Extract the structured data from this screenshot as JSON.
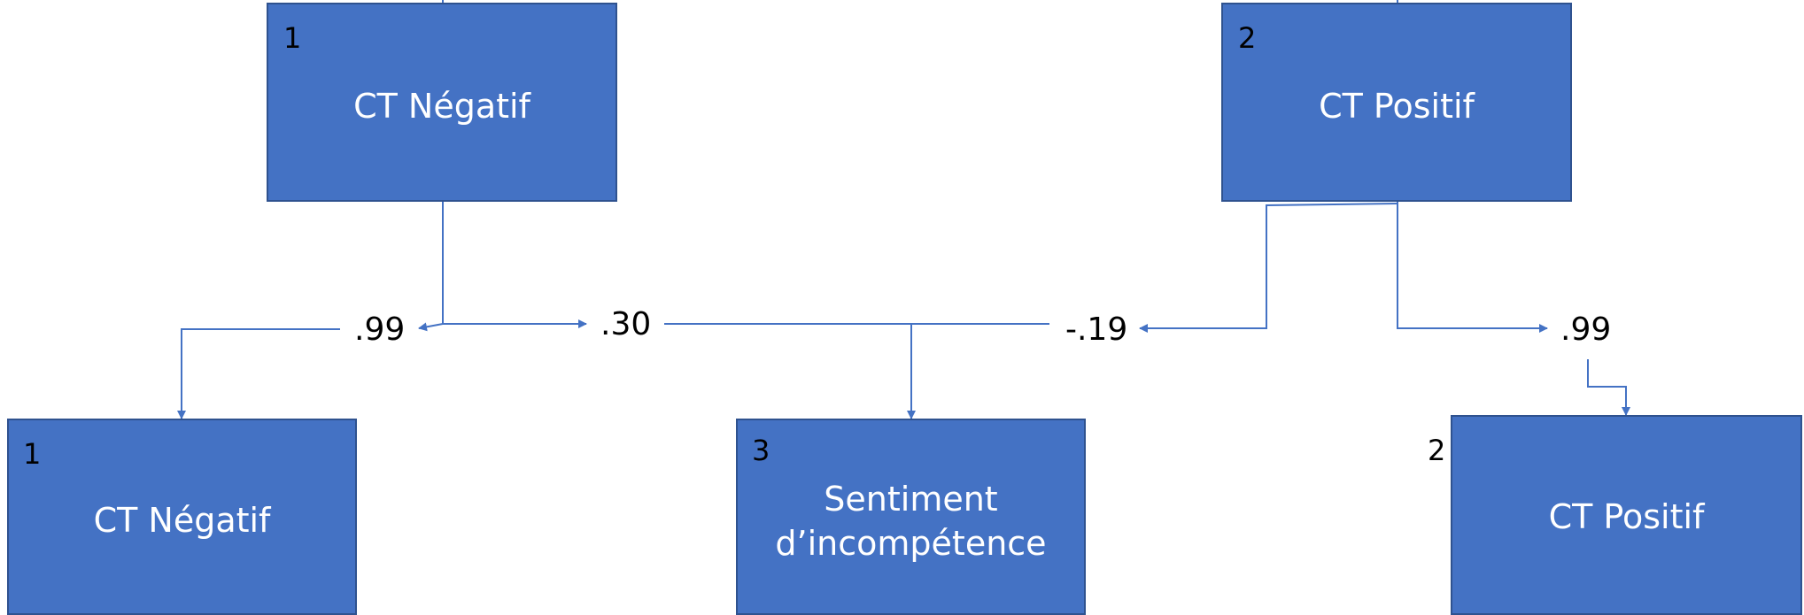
{
  "colors": {
    "box_fill": "#4472c4",
    "box_border": "#2f528f",
    "connector": "#4472c4",
    "box_text": "#ffffff",
    "label_text": "#000000"
  },
  "top_boxes": {
    "negatif": {
      "num": "1",
      "label": "CT Négatif"
    },
    "positif": {
      "num": "2",
      "label": "CT Positif"
    }
  },
  "bottom_boxes": {
    "negatif": {
      "num": "1",
      "label": "CT Négatif"
    },
    "sentiment": {
      "num": "3",
      "label_line1": "Sentiment",
      "label_line2": "d’incompétence"
    },
    "positif": {
      "num": "2",
      "label": "CT Positif"
    }
  },
  "coefficients": {
    "neg_stability": ".99",
    "neg_to_sentiment": ".30",
    "pos_to_sentiment": "-.19",
    "pos_stability": ".99"
  }
}
